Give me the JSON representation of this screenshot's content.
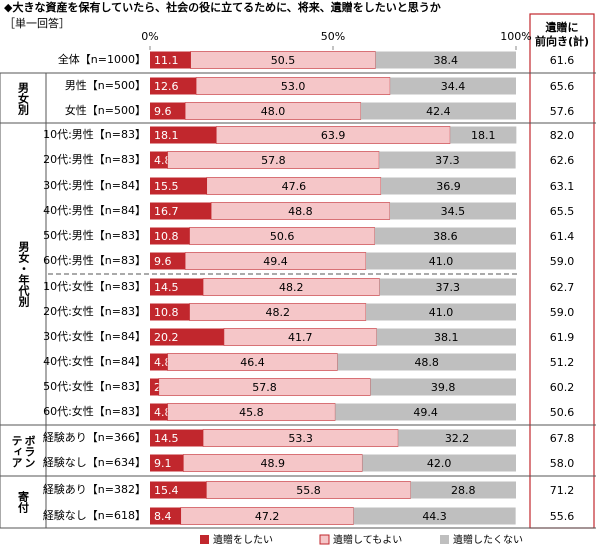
{
  "chart_data": {
    "type": "bar",
    "orientation": "horizontal",
    "stacked": true,
    "title": "◆大きな資産を保有していたら、社会の役に立てるために、将来、遺贈をしたいと思うか",
    "subtitle": "［単一回答］",
    "categories": [
      "全体【n=1000】",
      "男性【n=500】",
      "女性【n=500】",
      "10代:男性【n=83】",
      "20代:男性【n=83】",
      "30代:男性【n=84】",
      "40代:男性【n=84】",
      "50代:男性【n=83】",
      "60代:男性【n=83】",
      "10代:女性【n=83】",
      "20代:女性【n=83】",
      "30代:女性【n=84】",
      "40代:女性【n=84】",
      "50代:女性【n=83】",
      "60代:女性【n=83】",
      "経験あり【n=366】",
      "経験なし【n=634】",
      "経験あり【n=382】",
      "経験なし【n=618】"
    ],
    "groups": [
      "男女別",
      "男女・年代別",
      "ボランティア",
      "寄付"
    ],
    "xlim": [
      0,
      100
    ],
    "xticks": [
      {
        "value": 0,
        "label": "0%"
      },
      {
        "value": 50,
        "label": "50%"
      },
      {
        "value": 100,
        "label": "100%"
      }
    ],
    "series": [
      {
        "name": "遺贈をしたい",
        "color": "#c1272d",
        "values": [
          11.1,
          12.6,
          9.6,
          18.1,
          4.8,
          15.5,
          16.7,
          10.8,
          9.6,
          14.5,
          10.8,
          20.2,
          4.8,
          2.4,
          4.8,
          14.5,
          9.1,
          15.4,
          8.4
        ]
      },
      {
        "name": "遺贈してもよい",
        "color": "#f5c6c8",
        "values": [
          50.5,
          53.0,
          48.0,
          63.9,
          57.8,
          47.6,
          48.8,
          50.6,
          49.4,
          48.2,
          48.2,
          41.7,
          46.4,
          57.8,
          45.8,
          53.3,
          48.9,
          55.8,
          47.2
        ],
        "value_labels": [
          "50.5",
          "53.0",
          "48.0",
          "63.9",
          "57.8",
          "47.6",
          "48.8",
          "50.6",
          "49.4",
          "48.2",
          "48.2",
          "41.7",
          "46.4",
          "57.8",
          "45.8",
          "53.3",
          "48.9",
          "55.8",
          "47.2"
        ]
      },
      {
        "name": "遺贈したくない",
        "color": "#bfbfbf",
        "values": [
          38.4,
          34.4,
          42.4,
          18.1,
          37.3,
          36.9,
          34.5,
          38.6,
          41.0,
          37.3,
          41.0,
          38.1,
          48.8,
          39.8,
          49.4,
          32.2,
          42.0,
          28.8,
          44.3
        ],
        "value_labels": [
          "38.4",
          "34.4",
          "42.4",
          "18.1",
          "37.3",
          "36.9",
          "34.5",
          "38.6",
          "41.0",
          "37.3",
          "41.0",
          "38.1",
          "48.8",
          "39.8",
          "49.4",
          "32.2",
          "42.0",
          "28.8",
          "44.3"
        ]
      }
    ],
    "totals": {
      "label": "遺贈に前向き(計)",
      "values": [
        61.6,
        65.6,
        57.6,
        82.0,
        62.6,
        63.1,
        65.5,
        61.4,
        59.0,
        62.7,
        59.0,
        61.9,
        51.2,
        60.2,
        50.6,
        67.8,
        58.0,
        71.2,
        55.6
      ],
      "value_labels": [
        "61.6",
        "65.6",
        "57.6",
        "82.0",
        "62.6",
        "63.1",
        "65.5",
        "61.4",
        "59.0",
        "62.7",
        "59.0",
        "61.9",
        "51.2",
        "60.2",
        "50.6",
        "67.8",
        "58.0",
        "71.2",
        "55.6"
      ]
    }
  }
}
